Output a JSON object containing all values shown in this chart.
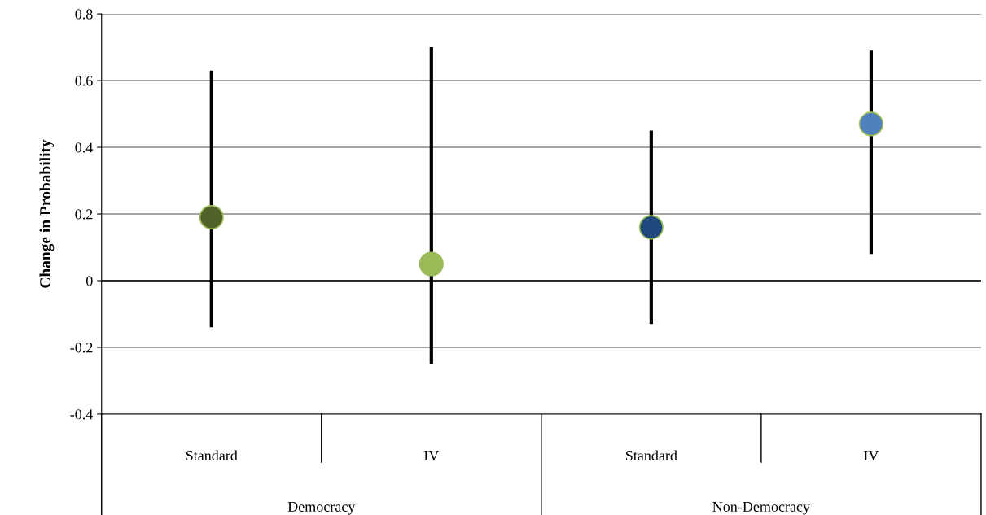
{
  "chart_data": {
    "type": "scatter",
    "ylabel": "Change in Probability",
    "categories": [
      "Standard",
      "IV",
      "Standard",
      "IV"
    ],
    "values": [
      0.19,
      0.05,
      0.16,
      0.47
    ],
    "errors": [
      [
        -0.14,
        0.63
      ],
      [
        -0.25,
        0.7
      ],
      [
        -0.13,
        0.45
      ],
      [
        0.08,
        0.69
      ]
    ],
    "colors": [
      "#4f6228",
      "#9bbb59",
      "#1f497d",
      "#4f81bd"
    ],
    "marker": "circle",
    "grid": "y",
    "legend": false,
    "ylim": [
      -0.4,
      0.8
    ],
    "yticks": [
      -0.4,
      -0.2,
      0,
      0.2,
      0.4,
      0.6,
      0.8
    ],
    "annotations": [
      "Democracy",
      "Non-Democracy"
    ]
  }
}
